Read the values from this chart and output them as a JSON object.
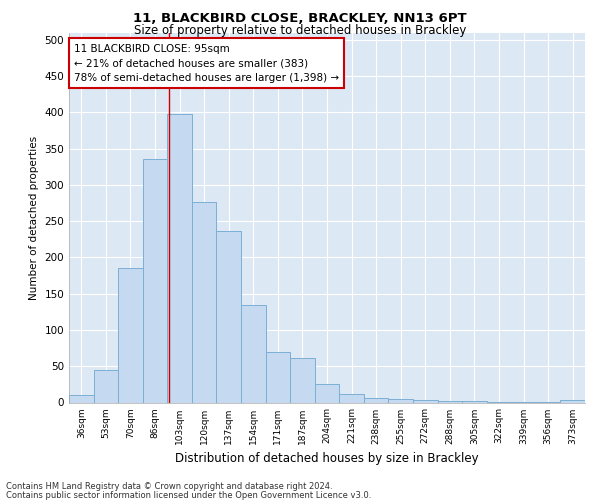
{
  "title1": "11, BLACKBIRD CLOSE, BRACKLEY, NN13 6PT",
  "title2": "Size of property relative to detached houses in Brackley",
  "xlabel": "Distribution of detached houses by size in Brackley",
  "ylabel": "Number of detached properties",
  "categories": [
    "36sqm",
    "53sqm",
    "70sqm",
    "86sqm",
    "103sqm",
    "120sqm",
    "137sqm",
    "154sqm",
    "171sqm",
    "187sqm",
    "204sqm",
    "221sqm",
    "238sqm",
    "255sqm",
    "272sqm",
    "288sqm",
    "305sqm",
    "322sqm",
    "339sqm",
    "356sqm",
    "373sqm"
  ],
  "values": [
    10,
    45,
    185,
    335,
    397,
    277,
    237,
    135,
    70,
    62,
    25,
    12,
    6,
    5,
    3,
    2,
    2,
    1,
    1,
    1,
    4
  ],
  "bar_color": "#c5d9f0",
  "bar_edge_color": "#7bafd4",
  "background_color": "#dde8f5",
  "grid_color": "#ffffff",
  "vline_x_index": 3.55,
  "vline_color": "#cc0000",
  "annotation_text": "11 BLACKBIRD CLOSE: 95sqm\n← 21% of detached houses are smaller (383)\n78% of semi-detached houses are larger (1,398) →",
  "annotation_box_color": "#ffffff",
  "annotation_box_edge": "#cc0000",
  "ylim": [
    0,
    510
  ],
  "yticks": [
    0,
    50,
    100,
    150,
    200,
    250,
    300,
    350,
    400,
    450,
    500
  ],
  "footnote1": "Contains HM Land Registry data © Crown copyright and database right 2024.",
  "footnote2": "Contains public sector information licensed under the Open Government Licence v3.0."
}
